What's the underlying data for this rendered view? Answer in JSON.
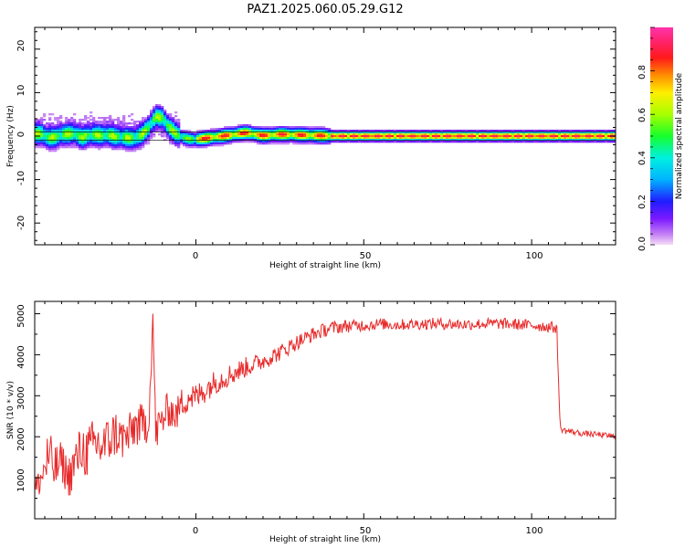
{
  "chart_data": [
    {
      "type": "heatmap",
      "title": "PAZ1.2025.060.05.29.G12",
      "xlabel": "Height of straight line (km)",
      "ylabel": "Frequency (Hz)",
      "xlim": [
        -48,
        125
      ],
      "ylim": [
        -25,
        25
      ],
      "x_ticks": [
        "0",
        "50",
        "100"
      ],
      "y_ticks": [
        "20",
        "10",
        "0",
        "-10",
        "-20"
      ],
      "colorbar": {
        "label": "Normalized spectral amplitude",
        "ticks": [
          "0.0",
          "0.2",
          "0.4",
          "0.6",
          "0.8"
        ],
        "range": [
          0,
          1
        ],
        "colormap": "rainbow (magenta-blue-cyan-green-yellow-orange-red-pink)"
      },
      "ridge": {
        "x": [
          -46,
          -44,
          -42,
          -40,
          -38,
          -36,
          -34,
          -32,
          -30,
          -28,
          -26,
          -24,
          -22,
          -20,
          -18,
          -16,
          -14,
          -12,
          -10,
          -8,
          -6,
          -4,
          -2,
          0,
          5,
          10,
          15,
          20,
          25,
          30,
          40,
          50,
          60,
          80,
          100,
          125
        ],
        "frequency": [
          0.5,
          -0.5,
          -0.3,
          0.2,
          0.5,
          0.5,
          -0.4,
          0.2,
          0.3,
          0.1,
          0.3,
          -0.2,
          -0.3,
          -0.5,
          -0.6,
          0.4,
          2.0,
          4.5,
          4.2,
          2.0,
          0.6,
          -0.3,
          -0.7,
          -0.8,
          -0.3,
          0.2,
          0.8,
          0.1,
          0.4,
          0.3,
          0.0,
          0.0,
          0.0,
          0.0,
          0.0,
          0.0
        ]
      }
    },
    {
      "type": "line",
      "xlabel": "Height of straight line (km)",
      "ylabel": "SNR (10 * v/v)",
      "xlim": [
        -48,
        125
      ],
      "ylim": [
        0,
        5300
      ],
      "x_ticks": [
        "0",
        "50",
        "100"
      ],
      "y_ticks": [
        "1000",
        "2000",
        "3000",
        "4000",
        "5000"
      ],
      "series_color": "#e82a2a",
      "x": [
        -48,
        -46,
        -44,
        -42,
        -40,
        -38,
        -36,
        -34,
        -32,
        -30,
        -28,
        -26,
        -24,
        -22,
        -20,
        -18,
        -16,
        -14,
        -12.8,
        -12,
        -10,
        -8,
        -6,
        -4,
        -2,
        0,
        5,
        10,
        15,
        20,
        25,
        30,
        35,
        40,
        45,
        50,
        55,
        60,
        70,
        80,
        90,
        100,
        105,
        107.5,
        108.5,
        110,
        115,
        120,
        125
      ],
      "y": [
        700,
        1000,
        1500,
        1200,
        1400,
        1000,
        1350,
        1700,
        1600,
        1850,
        1750,
        1900,
        2100,
        1950,
        2000,
        2300,
        2250,
        2400,
        5200,
        2100,
        2400,
        2700,
        2500,
        2850,
        3000,
        2950,
        3300,
        3500,
        3700,
        3850,
        4050,
        4300,
        4500,
        4650,
        4700,
        4720,
        4750,
        4730,
        4760,
        4740,
        4760,
        4720,
        4680,
        4650,
        2200,
        2150,
        2080,
        2050,
        2000
      ],
      "noise_amplitude": [
        300,
        400,
        700,
        600,
        500,
        500,
        650,
        600,
        700,
        650,
        650,
        600,
        600,
        550,
        550,
        550,
        550,
        500,
        0,
        550,
        450,
        450,
        400,
        400,
        400,
        350,
        300,
        280,
        250,
        220,
        200,
        190,
        180,
        170,
        160,
        150,
        140,
        140,
        140,
        140,
        140,
        140,
        140,
        140,
        80,
        80,
        70,
        70,
        70
      ]
    }
  ]
}
